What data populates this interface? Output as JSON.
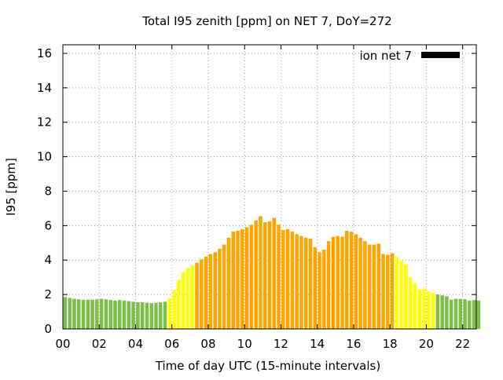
{
  "chart_data": {
    "type": "bar",
    "title": "Total I95 zenith [ppm] on NET 7, DoY=272",
    "xlabel": "Time of day UTC (15-minute intervals)",
    "ylabel": "I95 [ppm]",
    "xlim": [
      0,
      22.75
    ],
    "ylim": [
      0,
      16.5
    ],
    "x_ticks": [
      "00",
      "02",
      "04",
      "06",
      "08",
      "10",
      "12",
      "14",
      "16",
      "18",
      "20",
      "22"
    ],
    "x_tick_values": [
      0,
      2,
      4,
      6,
      8,
      10,
      12,
      14,
      16,
      18,
      20,
      22
    ],
    "y_ticks": [
      0,
      2,
      4,
      6,
      8,
      10,
      12,
      14,
      16
    ],
    "grid": true,
    "legend": {
      "label": "ion net 7",
      "color": "#000000",
      "placement": "top-right"
    },
    "bar_interval_hours": 0.25,
    "series": [
      {
        "name": "ion net 7",
        "x_start": 0,
        "values": [
          1.85,
          1.8,
          1.75,
          1.72,
          1.7,
          1.7,
          1.7,
          1.72,
          1.75,
          1.72,
          1.68,
          1.65,
          1.68,
          1.65,
          1.62,
          1.58,
          1.55,
          1.55,
          1.52,
          1.5,
          1.52,
          1.55,
          1.58,
          1.8,
          2.25,
          2.85,
          3.3,
          3.55,
          3.7,
          3.85,
          4.05,
          4.2,
          4.35,
          4.45,
          4.65,
          4.9,
          5.3,
          5.65,
          5.7,
          5.8,
          5.9,
          6.05,
          6.3,
          6.55,
          6.2,
          6.25,
          6.45,
          6.05,
          5.75,
          5.8,
          5.65,
          5.5,
          5.4,
          5.3,
          5.25,
          4.75,
          4.45,
          4.6,
          5.1,
          5.35,
          5.4,
          5.35,
          5.7,
          5.65,
          5.5,
          5.3,
          5.1,
          4.9,
          4.9,
          4.95,
          4.35,
          4.3,
          4.4,
          4.2,
          3.95,
          3.75,
          3.0,
          2.65,
          2.3,
          2.35,
          2.2,
          2.1,
          2.0,
          1.95,
          1.9,
          1.7,
          1.75,
          1.75,
          1.72,
          1.65,
          1.68,
          1.65
        ]
      }
    ],
    "color_bands": [
      {
        "range": [
          0,
          5.75
        ],
        "color": "#7cbf4a"
      },
      {
        "range": [
          5.75,
          7.25
        ],
        "color": "#ffff00"
      },
      {
        "range": [
          7.25,
          18.25
        ],
        "color": "#ffa500"
      },
      {
        "range": [
          18.25,
          20.5
        ],
        "color": "#ffff00"
      },
      {
        "range": [
          20.5,
          22.75
        ],
        "color": "#7cbf4a"
      }
    ]
  }
}
